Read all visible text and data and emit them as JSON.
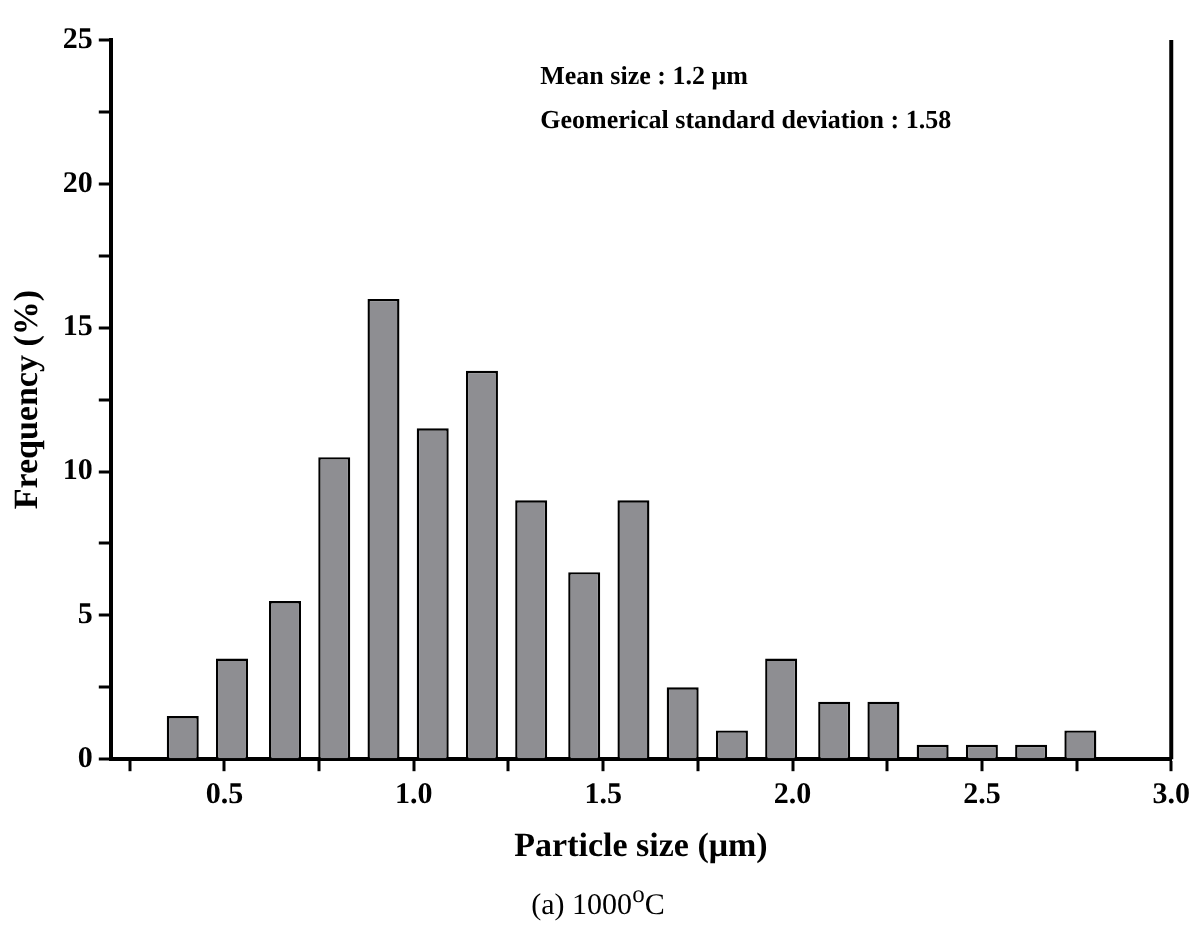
{
  "chart_data": {
    "type": "bar",
    "xlabel": "Particle size (μm)",
    "ylabel": "Frequency (%)",
    "x": [
      0.39,
      0.52,
      0.66,
      0.79,
      0.92,
      1.05,
      1.18,
      1.31,
      1.45,
      1.58,
      1.71,
      1.84,
      1.97,
      2.11,
      2.24,
      2.37,
      2.5,
      2.63,
      2.76
    ],
    "values": [
      1.5,
      3.5,
      5.5,
      10.5,
      16,
      11.5,
      13.5,
      9,
      6.5,
      9,
      2.5,
      1,
      3.5,
      2,
      2,
      0.5,
      0.5,
      0.5,
      1
    ],
    "color": "#8e8e92",
    "xlim": [
      0.2,
      3.0
    ],
    "xticks": [
      {
        "value": 0.25,
        "label": null
      },
      {
        "value": 0.5,
        "label": "0.5"
      },
      {
        "value": 0.75,
        "label": null
      },
      {
        "value": 1,
        "label": "1.0"
      },
      {
        "value": 1.25,
        "label": null
      },
      {
        "value": 1.5,
        "label": "1.5"
      },
      {
        "value": 1.75,
        "label": null
      },
      {
        "value": 2,
        "label": "2.0"
      },
      {
        "value": 2.25,
        "label": null
      },
      {
        "value": 2.5,
        "label": "2.5"
      },
      {
        "value": 2.75,
        "label": null
      },
      {
        "value": 3,
        "label": "3.0"
      }
    ],
    "ylim": [
      0,
      25
    ],
    "yticks": [
      0,
      {
        "value": 2.5,
        "label": null
      },
      5,
      {
        "value": 7.5,
        "label": null
      },
      10,
      {
        "value": 12.5,
        "label": null
      },
      15,
      {
        "value": 17.5,
        "label": null
      },
      20,
      {
        "value": 22.5,
        "label": null
      },
      25
    ],
    "grid": false,
    "legend": false,
    "annotations": [
      "Mean size : 1.2 μm",
      "Geomerical standard deviation : 1.58",
      "(a) 1000$^{o}$C"
    ]
  }
}
